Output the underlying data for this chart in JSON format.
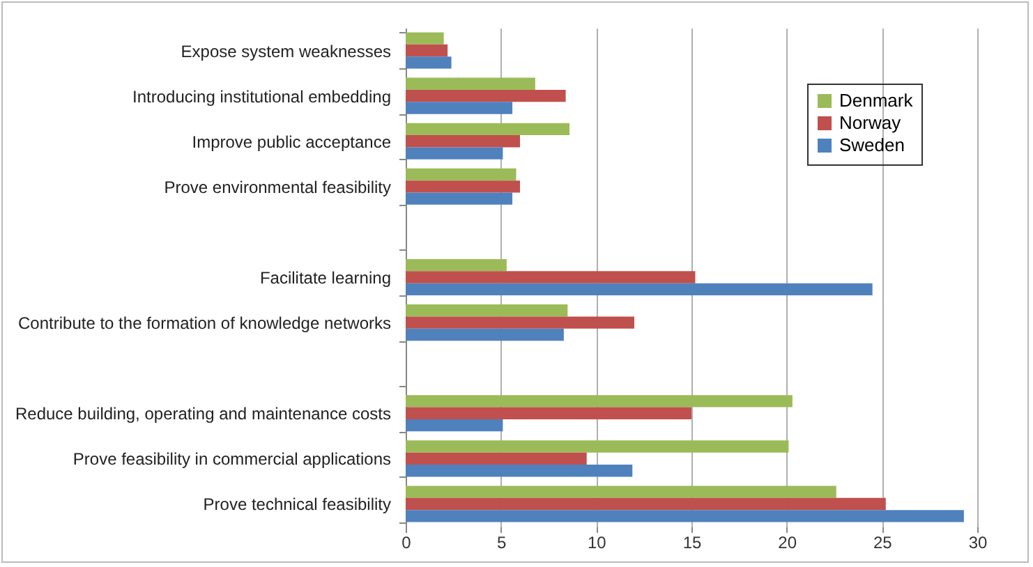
{
  "chart_data": {
    "type": "bar",
    "orientation": "horizontal",
    "categories": [
      "Expose system weaknesses",
      "Introducing institutional embedding",
      "Improve public acceptance",
      "Prove environmental feasibility",
      null,
      "Facilitate learning",
      "Contribute to the formation of knowledge networks",
      null,
      "Reduce building, operating and maintenance costs",
      "Prove feasibility in commercial applications",
      "Prove technical feasibility"
    ],
    "series": [
      {
        "name": "Denmark",
        "color": "#9bbb59",
        "values": [
          2.0,
          6.8,
          8.6,
          5.8,
          null,
          5.3,
          8.5,
          null,
          20.3,
          20.1,
          22.6
        ]
      },
      {
        "name": "Norway",
        "color": "#c0504d",
        "values": [
          2.2,
          8.4,
          6.0,
          6.0,
          null,
          15.2,
          12.0,
          null,
          15.0,
          9.5,
          25.2
        ]
      },
      {
        "name": "Sweden",
        "color": "#4f81bd",
        "values": [
          2.4,
          5.6,
          5.1,
          5.6,
          null,
          24.5,
          8.3,
          null,
          5.1,
          11.9,
          29.3
        ]
      }
    ],
    "xlim": [
      0,
      30
    ],
    "xticks": [
      0,
      5,
      10,
      15,
      20,
      25,
      30
    ],
    "grid": "x",
    "legend": "top right"
  }
}
